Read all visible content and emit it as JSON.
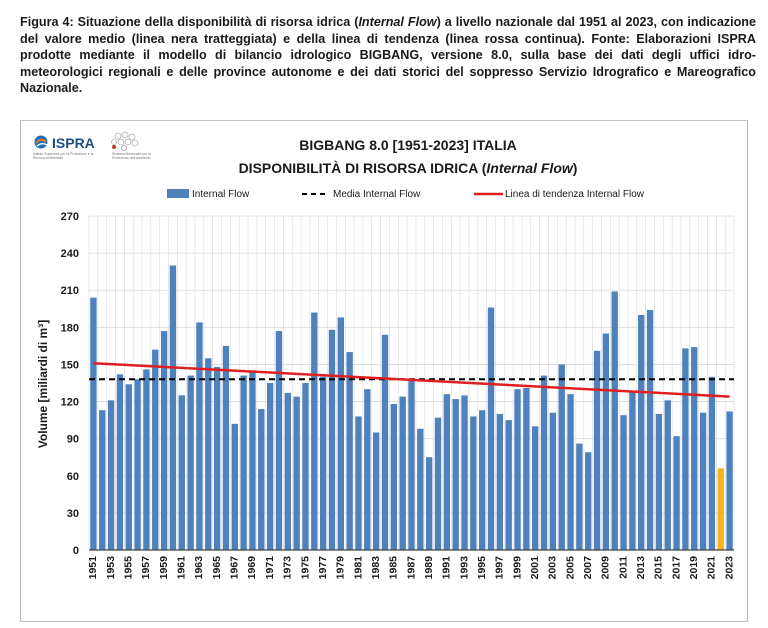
{
  "caption": {
    "prefix": "Figura 4: Situazione della disponibilità di risorsa idrica (",
    "italic": "Internal Flow",
    "suffix": ") a livello nazionale dal 1951 al 2023, con indicazione del valore medio (linea nera tratteggiata) e della linea di tendenza (linea rossa continua). Fonte: Elaborazioni ISPRA prodotte mediante il modello di bilancio idrologico BIGBANG, versione 8.0, sulla base dei dati degli uffici idro-meteorologici regionali e delle province autonome e dei dati storici del soppresso Servizio Idrografico e Mareografico Nazionale."
  },
  "logo": {
    "name": "ISPRA",
    "subtitle": "Istituto Superiore per la Protezione e la Ricerca Ambientale",
    "partner": "Sistema Nazionale per la Protezione dell'Ambiente"
  },
  "colors": {
    "bar": "#4f81bd",
    "bar_highlight": "#f5b41c",
    "mean_line": "#000000",
    "trend_line": "#e02020",
    "grid": "#d9d9d9"
  },
  "chart_data": {
    "type": "bar",
    "title_line1": "BIGBANG 8.0 [1951-2023] ITALIA",
    "title_line2_prefix": "DISPONIBILITÀ DI RISORSA IDRICA (",
    "title_line2_italic": "Internal Flow",
    "title_line2_suffix": ")",
    "ylabel": "Volume [miliardi di m³]",
    "xlabel": "",
    "ylim": [
      0,
      270
    ],
    "yticks": [
      0,
      30,
      60,
      90,
      120,
      150,
      180,
      210,
      240,
      270
    ],
    "grid": true,
    "legend_position": "top",
    "legend": {
      "bars": "Internal Flow",
      "mean": "Media Internal Flow",
      "trend": "Linea di tendenza Internal Flow"
    },
    "x": [
      1951,
      1952,
      1953,
      1954,
      1955,
      1956,
      1957,
      1958,
      1959,
      1960,
      1961,
      1962,
      1963,
      1964,
      1965,
      1966,
      1967,
      1968,
      1969,
      1970,
      1971,
      1972,
      1973,
      1974,
      1975,
      1976,
      1977,
      1978,
      1979,
      1980,
      1981,
      1982,
      1983,
      1984,
      1985,
      1986,
      1987,
      1988,
      1989,
      1990,
      1991,
      1992,
      1993,
      1994,
      1995,
      1996,
      1997,
      1998,
      1999,
      2000,
      2001,
      2002,
      2003,
      2004,
      2005,
      2006,
      2007,
      2008,
      2009,
      2010,
      2011,
      2012,
      2013,
      2014,
      2015,
      2016,
      2017,
      2018,
      2019,
      2020,
      2021,
      2022,
      2023
    ],
    "xtick_labels": [
      1951,
      1953,
      1955,
      1957,
      1959,
      1961,
      1963,
      1965,
      1967,
      1969,
      1971,
      1973,
      1975,
      1977,
      1979,
      1981,
      1983,
      1985,
      1987,
      1989,
      1991,
      1993,
      1995,
      1997,
      1999,
      2001,
      2003,
      2005,
      2007,
      2009,
      2011,
      2013,
      2015,
      2017,
      2019,
      2021,
      2023
    ],
    "values": [
      204,
      113,
      121,
      142,
      134,
      138,
      146,
      162,
      177,
      230,
      125,
      141,
      184,
      155,
      148,
      165,
      102,
      141,
      145,
      114,
      135,
      177,
      127,
      124,
      135,
      192,
      140,
      178,
      188,
      160,
      108,
      130,
      95,
      174,
      118,
      124,
      138,
      98,
      75,
      107,
      126,
      122,
      125,
      108,
      113,
      196,
      110,
      105,
      130,
      131,
      100,
      141,
      111,
      150,
      126,
      86,
      79,
      161,
      175,
      209,
      109,
      128,
      190,
      194,
      110,
      121,
      92,
      163,
      164,
      111,
      140,
      66,
      112
    ],
    "highlight_year": 2022,
    "mean": 138,
    "trend": {
      "start_year": 1951,
      "start_value": 151,
      "end_year": 2023,
      "end_value": 124
    }
  }
}
